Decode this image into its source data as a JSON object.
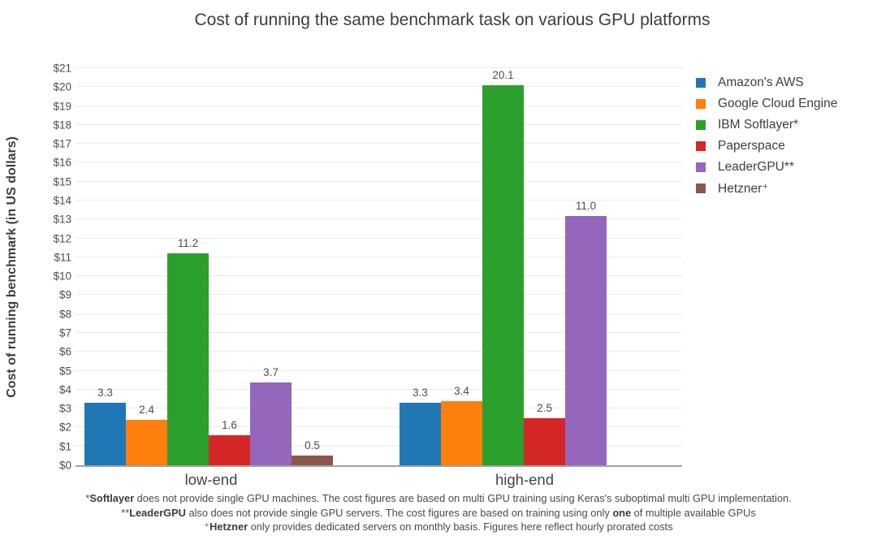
{
  "chart_data": {
    "type": "bar",
    "title": "Cost of running the same benchmark task on various GPU platforms",
    "ylabel": "Cost of running benchmark (in US dollars)",
    "xlabel": "",
    "categories": [
      "low-end",
      "high-end"
    ],
    "series": [
      {
        "name": "Amazon's AWS",
        "color": "#1f77b4",
        "values": [
          3.3,
          3.3
        ]
      },
      {
        "name": "Google Cloud Engine",
        "color": "#ff7f0e",
        "values": [
          2.4,
          3.4
        ]
      },
      {
        "name": "IBM Softlayer*",
        "color": "#2ca02c",
        "values": [
          11.2,
          20.1
        ]
      },
      {
        "name": "Paperspace",
        "color": "#d62728",
        "values": [
          1.6,
          2.5
        ]
      },
      {
        "name": "LeaderGPU**",
        "color": "#9467bd",
        "values": [
          3.7,
          11.0
        ],
        "drawn_values": [
          4.4,
          13.2
        ]
      },
      {
        "name": "Hetzner⁺",
        "color": "#8c564b",
        "values": [
          0.5,
          null
        ]
      }
    ],
    "ylim": [
      0,
      21
    ],
    "ytick_step": 1,
    "ytick_prefix": "$",
    "grid": true,
    "legend_position": "top-right",
    "bar_label_decimals": 1
  },
  "footnotes": [
    [
      {
        "t": "*"
      },
      {
        "t": "Softlayer",
        "b": true
      },
      {
        "t": " does not provide single GPU machines. The cost figures are based on multi GPU training using Keras's suboptimal multi GPU implementation."
      }
    ],
    [
      {
        "t": "**"
      },
      {
        "t": "LeaderGPU",
        "b": true
      },
      {
        "t": " also does not provide single GPU servers. The cost figures are based on training using only "
      },
      {
        "t": "one",
        "b": true
      },
      {
        "t": " of multiple available GPUs"
      }
    ],
    [
      {
        "t": "⁺"
      },
      {
        "t": "Hetzner",
        "b": true
      },
      {
        "t": " only provides dedicated servers on monthly basis. Figures here reflect hourly prorated costs"
      }
    ]
  ]
}
